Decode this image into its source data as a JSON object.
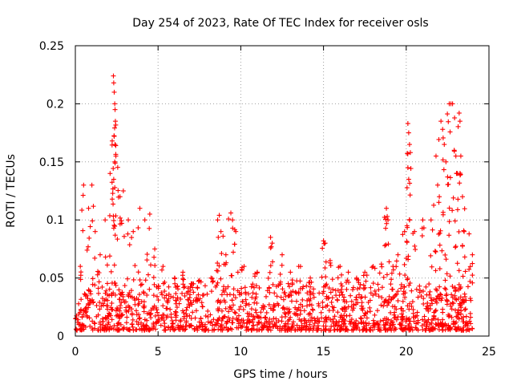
{
  "chart_data": {
    "type": "scatter",
    "title": "Day 254 of 2023, Rate Of TEC Index for receiver osls",
    "xlabel": "GPS time / hours",
    "ylabel": "ROTI / TECUs",
    "xlim": [
      0,
      25
    ],
    "ylim": [
      0,
      0.25
    ],
    "xticks": [
      0,
      5,
      10,
      15,
      20,
      25
    ],
    "yticks": [
      0,
      0.05,
      0.1,
      0.15,
      0.2,
      0.25
    ],
    "xtick_labels": [
      "0",
      "5",
      "10",
      "15",
      "20",
      "25"
    ],
    "ytick_labels": [
      "0",
      "0.05",
      "0.1",
      "0.15",
      "0.2",
      "0.25"
    ],
    "grid": true,
    "marker": "+",
    "series": [
      {
        "name": "ROTI",
        "color": "#ff0000",
        "baseline_range": [
          0.005,
          0.045
        ],
        "points": [
          [
            0.3,
            0.06
          ],
          [
            0.5,
            0.13
          ],
          [
            0.8,
            0.11
          ],
          [
            1.0,
            0.13
          ],
          [
            1.2,
            0.09
          ],
          [
            1.5,
            0.07
          ],
          [
            1.8,
            0.1
          ],
          [
            2.1,
            0.14
          ],
          [
            2.3,
            0.224
          ],
          [
            2.32,
            0.218
          ],
          [
            2.35,
            0.21
          ],
          [
            2.38,
            0.2
          ],
          [
            2.4,
            0.195
          ],
          [
            2.42,
            0.185
          ],
          [
            2.35,
            0.172
          ],
          [
            2.4,
            0.165
          ],
          [
            2.45,
            0.155
          ],
          [
            2.38,
            0.15
          ],
          [
            2.7,
            0.12
          ],
          [
            2.9,
            0.125
          ],
          [
            3.2,
            0.1
          ],
          [
            3.5,
            0.09
          ],
          [
            3.9,
            0.11
          ],
          [
            4.2,
            0.1
          ],
          [
            4.5,
            0.105
          ],
          [
            4.8,
            0.075
          ],
          [
            5.3,
            0.06
          ],
          [
            6.0,
            0.05
          ],
          [
            6.5,
            0.055
          ],
          [
            7.0,
            0.045
          ],
          [
            7.5,
            0.048
          ],
          [
            8.2,
            0.05
          ],
          [
            8.6,
            0.1
          ],
          [
            8.7,
            0.104
          ],
          [
            8.8,
            0.09
          ],
          [
            9.1,
            0.07
          ],
          [
            9.4,
            0.106
          ],
          [
            9.5,
            0.1
          ],
          [
            9.7,
            0.09
          ],
          [
            10.2,
            0.06
          ],
          [
            11.0,
            0.055
          ],
          [
            11.8,
            0.085
          ],
          [
            11.9,
            0.08
          ],
          [
            12.5,
            0.07
          ],
          [
            13.0,
            0.055
          ],
          [
            13.5,
            0.06
          ],
          [
            14.2,
            0.05
          ],
          [
            15.0,
            0.082
          ],
          [
            15.1,
            0.08
          ],
          [
            15.4,
            0.065
          ],
          [
            16.0,
            0.06
          ],
          [
            16.5,
            0.055
          ],
          [
            17.0,
            0.05
          ],
          [
            17.5,
            0.055
          ],
          [
            18.0,
            0.06
          ],
          [
            18.5,
            0.062
          ],
          [
            18.8,
            0.11
          ],
          [
            18.85,
            0.103
          ],
          [
            18.9,
            0.1
          ],
          [
            19.2,
            0.06
          ],
          [
            19.5,
            0.07
          ],
          [
            19.9,
            0.09
          ],
          [
            20.1,
            0.183
          ],
          [
            20.15,
            0.175
          ],
          [
            20.2,
            0.165
          ],
          [
            20.25,
            0.158
          ],
          [
            20.1,
            0.145
          ],
          [
            20.15,
            0.135
          ],
          [
            20.5,
            0.09
          ],
          [
            21.0,
            0.1
          ],
          [
            21.5,
            0.1
          ],
          [
            21.8,
            0.155
          ],
          [
            21.9,
            0.13
          ],
          [
            22.0,
            0.12
          ],
          [
            22.1,
            0.185
          ],
          [
            22.2,
            0.178
          ],
          [
            22.3,
            0.165
          ],
          [
            22.4,
            0.15
          ],
          [
            22.5,
            0.137
          ],
          [
            22.6,
            0.2
          ],
          [
            22.7,
            0.2
          ],
          [
            22.8,
            0.2
          ],
          [
            22.9,
            0.16
          ],
          [
            23.0,
            0.155
          ],
          [
            23.1,
            0.14
          ],
          [
            23.2,
            0.192
          ],
          [
            23.25,
            0.185
          ],
          [
            23.3,
            0.155
          ],
          [
            23.4,
            0.12
          ],
          [
            23.5,
            0.09
          ],
          [
            23.8,
            0.088
          ],
          [
            24.0,
            0.07
          ]
        ]
      }
    ]
  }
}
